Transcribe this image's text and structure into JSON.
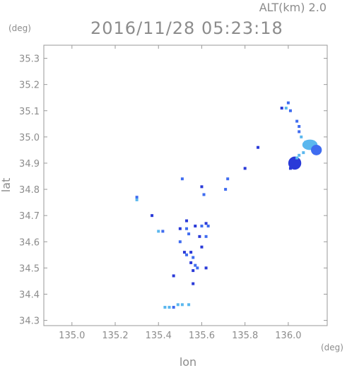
{
  "chart_data": {
    "type": "scatter",
    "title": "2016/11/28 05:23:18",
    "altitude_label": "ALT(km) 2.0",
    "xlabel": "lon",
    "ylabel": "lat",
    "x_unit": "(deg)",
    "y_unit": "(deg)",
    "xlim": [
      134.87,
      136.18
    ],
    "ylim": [
      34.28,
      35.35
    ],
    "x_ticks": [
      135.0,
      135.2,
      135.4,
      135.6,
      135.8,
      136.0
    ],
    "x_tick_labels": [
      "135.0",
      "135.2",
      "135.4",
      "135.6",
      "135.8",
      "136.0"
    ],
    "y_ticks": [
      34.3,
      34.4,
      34.5,
      34.6,
      34.7,
      34.8,
      34.9,
      35.0,
      35.1,
      35.2,
      35.3
    ],
    "y_tick_labels": [
      "34.3",
      "34.4",
      "34.5",
      "34.6",
      "34.7",
      "34.8",
      "34.9",
      "35.0",
      "35.1",
      "35.2",
      "35.3"
    ],
    "grid": false,
    "colors": {
      "axis": "#9a9a9a",
      "text": "#8c8c8c",
      "echo_strong": "#2a3ad8",
      "echo_medium": "#3f6cf0",
      "echo_weak": "#5ab7ee"
    },
    "points": [
      {
        "x": 136.0,
        "y": 35.13,
        "color": "#3f6cf0"
      },
      {
        "x": 135.99,
        "y": 35.11,
        "color": "#5ab7ee"
      },
      {
        "x": 136.01,
        "y": 35.1,
        "color": "#3f6cf0"
      },
      {
        "x": 135.97,
        "y": 35.11,
        "color": "#2a3ad8"
      },
      {
        "x": 136.04,
        "y": 35.06,
        "color": "#3f6cf0"
      },
      {
        "x": 136.05,
        "y": 35.04,
        "color": "#3f6cf0"
      },
      {
        "x": 136.05,
        "y": 35.02,
        "color": "#3f6cf0"
      },
      {
        "x": 136.06,
        "y": 35.0,
        "color": "#5ab7ee"
      },
      {
        "x": 136.08,
        "y": 34.98,
        "color": "#5ab7ee"
      },
      {
        "x": 136.09,
        "y": 34.97,
        "color": "#5ab7ee"
      },
      {
        "x": 136.12,
        "y": 34.96,
        "color": "#3f6cf0"
      },
      {
        "x": 136.14,
        "y": 34.95,
        "color": "#3f6cf0"
      },
      {
        "x": 136.07,
        "y": 34.94,
        "color": "#5ab7ee"
      },
      {
        "x": 136.05,
        "y": 34.93,
        "color": "#5ab7ee"
      },
      {
        "x": 136.04,
        "y": 34.92,
        "color": "#5ab7ee"
      },
      {
        "x": 136.03,
        "y": 34.9,
        "color": "#2a3ad8"
      },
      {
        "x": 136.01,
        "y": 34.88,
        "color": "#2a3ad8"
      },
      {
        "x": 135.86,
        "y": 34.96,
        "color": "#2a3ad8"
      },
      {
        "x": 135.8,
        "y": 34.88,
        "color": "#2a3ad8"
      },
      {
        "x": 135.72,
        "y": 34.84,
        "color": "#3f6cf0"
      },
      {
        "x": 135.71,
        "y": 34.8,
        "color": "#3f6cf0"
      },
      {
        "x": 135.6,
        "y": 34.81,
        "color": "#2a3ad8"
      },
      {
        "x": 135.61,
        "y": 34.78,
        "color": "#3f6cf0"
      },
      {
        "x": 135.51,
        "y": 34.84,
        "color": "#3f6cf0"
      },
      {
        "x": 135.3,
        "y": 34.77,
        "color": "#3f6cf0"
      },
      {
        "x": 135.3,
        "y": 34.76,
        "color": "#5ab7ee"
      },
      {
        "x": 135.37,
        "y": 34.7,
        "color": "#2a3ad8"
      },
      {
        "x": 135.4,
        "y": 34.64,
        "color": "#5ab7ee"
      },
      {
        "x": 135.42,
        "y": 34.64,
        "color": "#3f6cf0"
      },
      {
        "x": 135.5,
        "y": 34.65,
        "color": "#2a3ad8"
      },
      {
        "x": 135.53,
        "y": 34.65,
        "color": "#3f6cf0"
      },
      {
        "x": 135.53,
        "y": 34.68,
        "color": "#2a3ad8"
      },
      {
        "x": 135.54,
        "y": 34.63,
        "color": "#3f6cf0"
      },
      {
        "x": 135.57,
        "y": 34.66,
        "color": "#2a3ad8"
      },
      {
        "x": 135.6,
        "y": 34.66,
        "color": "#3f6cf0"
      },
      {
        "x": 135.62,
        "y": 34.67,
        "color": "#2a3ad8"
      },
      {
        "x": 135.63,
        "y": 34.66,
        "color": "#3f6cf0"
      },
      {
        "x": 135.59,
        "y": 34.62,
        "color": "#2a3ad8"
      },
      {
        "x": 135.62,
        "y": 34.62,
        "color": "#3f6cf0"
      },
      {
        "x": 135.6,
        "y": 34.58,
        "color": "#2a3ad8"
      },
      {
        "x": 135.5,
        "y": 34.6,
        "color": "#3f6cf0"
      },
      {
        "x": 135.52,
        "y": 34.56,
        "color": "#2a3ad8"
      },
      {
        "x": 135.53,
        "y": 34.55,
        "color": "#3f6cf0"
      },
      {
        "x": 135.55,
        "y": 34.56,
        "color": "#2a3ad8"
      },
      {
        "x": 135.56,
        "y": 34.54,
        "color": "#3f6cf0"
      },
      {
        "x": 135.55,
        "y": 34.52,
        "color": "#2a3ad8"
      },
      {
        "x": 135.57,
        "y": 34.51,
        "color": "#3f6cf0"
      },
      {
        "x": 135.56,
        "y": 34.49,
        "color": "#2a3ad8"
      },
      {
        "x": 135.58,
        "y": 34.5,
        "color": "#3f6cf0"
      },
      {
        "x": 135.62,
        "y": 34.5,
        "color": "#2a3ad8"
      },
      {
        "x": 135.47,
        "y": 34.47,
        "color": "#2a3ad8"
      },
      {
        "x": 135.56,
        "y": 34.44,
        "color": "#2a3ad8"
      },
      {
        "x": 135.43,
        "y": 34.35,
        "color": "#5ab7ee"
      },
      {
        "x": 135.45,
        "y": 34.35,
        "color": "#5ab7ee"
      },
      {
        "x": 135.47,
        "y": 34.35,
        "color": "#3f6cf0"
      },
      {
        "x": 135.49,
        "y": 34.36,
        "color": "#5ab7ee"
      },
      {
        "x": 135.51,
        "y": 34.36,
        "color": "#5ab7ee"
      },
      {
        "x": 135.54,
        "y": 34.36,
        "color": "#5ab7ee"
      }
    ],
    "blobs": [
      {
        "x": 136.1,
        "y": 34.97,
        "rx": 0.035,
        "ry": 0.02,
        "color": "#5ab7ee"
      },
      {
        "x": 136.03,
        "y": 34.9,
        "rx": 0.03,
        "ry": 0.025,
        "color": "#2a3ad8"
      },
      {
        "x": 136.13,
        "y": 34.95,
        "rx": 0.025,
        "ry": 0.02,
        "color": "#3f6cf0"
      }
    ]
  }
}
